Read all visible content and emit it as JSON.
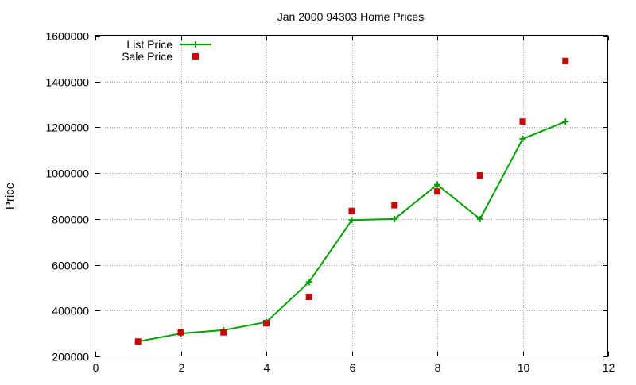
{
  "chart_data": {
    "type": "line",
    "title": "Jan 2000 94303 Home Prices",
    "xlabel": "",
    "ylabel": "Price",
    "xlim": [
      0,
      12
    ],
    "ylim": [
      200000,
      1600000
    ],
    "x_ticks": [
      "0",
      "2",
      "4",
      "6",
      "8",
      "10",
      "12"
    ],
    "y_ticks": [
      "200000",
      "400000",
      "600000",
      "800000",
      "1000000",
      "1200000",
      "1400000",
      "1600000"
    ],
    "grid": true,
    "legend_position": "top-left",
    "series": [
      {
        "name": "List Price",
        "style": "line-with-plus-markers",
        "color": "#00a000",
        "x": [
          1,
          2,
          3,
          4,
          5,
          6,
          7,
          8,
          9,
          10,
          11
        ],
        "y": [
          265000,
          300000,
          315000,
          350000,
          525000,
          795000,
          800000,
          950000,
          800000,
          1150000,
          1225000
        ]
      },
      {
        "name": "Sale Price",
        "style": "square-markers",
        "color": "#cc0000",
        "x": [
          1,
          2,
          3,
          4,
          5,
          6,
          7,
          8,
          9,
          10,
          11
        ],
        "y": [
          265000,
          305000,
          305000,
          345000,
          460000,
          835000,
          860000,
          920000,
          990000,
          1225000,
          1490000
        ]
      }
    ]
  }
}
